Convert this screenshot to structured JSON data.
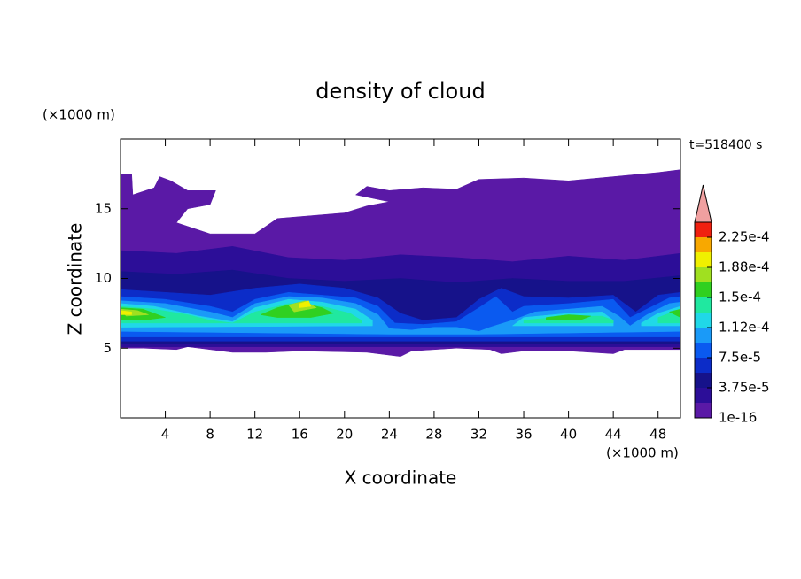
{
  "chart_data": {
    "type": "contour",
    "title": "density of cloud",
    "xlabel": "X coordinate",
    "ylabel": "Z coordinate",
    "x_unit": "(×1000 m)",
    "y_unit": "(×1000 m)",
    "annotation": "t=518400 s",
    "xlim": [
      0,
      50
    ],
    "ylim": [
      0,
      20
    ],
    "xticks": [
      4,
      8,
      12,
      16,
      20,
      24,
      28,
      32,
      36,
      40,
      44,
      48
    ],
    "yticks": [
      5,
      10,
      15
    ],
    "colorbar": {
      "levels": [
        1e-16,
        1.875e-05,
        3.75e-05,
        5.625e-05,
        7.5e-05,
        9.375e-05,
        0.0001125,
        0.00013125,
        0.00015,
        0.00016875,
        0.0001875,
        0.00020625,
        0.000225
      ],
      "colors": [
        "#5a19a6",
        "#2c0e98",
        "#16128a",
        "#0c2cc8",
        "#0a5af0",
        "#1a9af8",
        "#20d8e8",
        "#20e8a0",
        "#30d020",
        "#a0e020",
        "#f0f000",
        "#f8a800",
        "#f02010"
      ],
      "clim": [
        1e-16,
        0.00024375
      ],
      "extend_color": "#f0a0a0",
      "ticks": [
        {
          "value": 1e-16,
          "label": "1e-16"
        },
        {
          "value": 3.75e-05,
          "label": "3.75e-5"
        },
        {
          "value": 7.5e-05,
          "label": "7.5e-5"
        },
        {
          "value": 0.0001125,
          "label": "1.12e-4"
        },
        {
          "value": 0.00015,
          "label": "1.5e-4"
        },
        {
          "value": 0.0001875,
          "label": "1.88e-4"
        },
        {
          "value": 0.000225,
          "label": "2.25e-4"
        }
      ]
    },
    "contours": [
      {
        "level": 1e-16,
        "x": [
          0,
          1,
          1.1,
          3,
          3.5,
          4.5,
          6,
          8.5,
          8,
          6,
          5,
          8,
          12,
          14,
          17,
          20,
          22,
          24,
          21,
          22,
          24,
          27,
          30,
          32,
          36,
          40,
          44,
          48,
          50,
          50,
          45,
          44,
          40,
          36,
          34,
          33,
          30,
          26,
          25,
          22,
          16,
          13,
          10,
          6,
          5,
          2,
          0
        ],
        "z": [
          17.5,
          17.5,
          16,
          16.5,
          17.3,
          17,
          16.3,
          16.3,
          15.3,
          15,
          14,
          13.2,
          13.2,
          14.3,
          14.5,
          14.7,
          15.2,
          15.5,
          16,
          16.6,
          16.3,
          16.5,
          16.4,
          17.1,
          17.2,
          17,
          17.3,
          17.6,
          17.8,
          4.9,
          4.9,
          4.6,
          4.8,
          4.8,
          4.6,
          4.9,
          5,
          4.8,
          4.4,
          4.7,
          4.8,
          4.7,
          4.7,
          5.1,
          4.9,
          5,
          5
        ]
      },
      {
        "level": 1.875e-05,
        "x": [
          0,
          5,
          10,
          15,
          20,
          25,
          30,
          35,
          40,
          45,
          50,
          50,
          0
        ],
        "z": [
          12,
          11.8,
          12.3,
          11.5,
          11.3,
          11.7,
          11.5,
          11.2,
          11.6,
          11.3,
          11.8,
          5.1,
          5.1
        ]
      },
      {
        "level": 3.75e-05,
        "x": [
          0,
          5,
          10,
          15,
          20,
          25,
          30,
          35,
          40,
          45,
          50,
          50,
          0
        ],
        "z": [
          10.5,
          10.3,
          10.6,
          10,
          9.8,
          10,
          9.7,
          10,
          9.8,
          9.8,
          10.2,
          5.3,
          5.3
        ]
      },
      {
        "level": 5.625e-05,
        "x": [
          0,
          4,
          8,
          12,
          16,
          20,
          23,
          25,
          27,
          30,
          32,
          34,
          36,
          40,
          44,
          46,
          48,
          50,
          50,
          0
        ],
        "z": [
          9.2,
          9,
          8.8,
          9.3,
          9.6,
          9.3,
          8.6,
          7.5,
          7,
          7.2,
          8.5,
          9.3,
          8.7,
          8.6,
          8.8,
          7.6,
          8.8,
          9,
          5.5,
          5.5
        ]
      },
      {
        "level": 7.5e-05,
        "x": [
          0,
          4,
          8,
          10,
          12,
          15,
          18,
          21,
          23,
          24.5,
          27,
          30,
          32,
          33.5,
          35,
          36,
          40,
          44,
          45.5,
          47,
          49,
          50,
          50,
          0
        ],
        "z": [
          8.7,
          8.5,
          8,
          7.6,
          8.5,
          9,
          8.8,
          8.6,
          8,
          6.8,
          6.7,
          6.9,
          7.9,
          8.7,
          7.6,
          8,
          8.2,
          8.5,
          7.2,
          7.8,
          8.6,
          8.7,
          5.8,
          5.8
        ]
      },
      {
        "level": 9.375e-05,
        "x": [
          0,
          4,
          8,
          10,
          12,
          15,
          18,
          21,
          23,
          24,
          26,
          28,
          30,
          32,
          33,
          35,
          37,
          40,
          43,
          44.5,
          45.5,
          47,
          49,
          50,
          50,
          32,
          24,
          0
        ],
        "z": [
          8.4,
          8.2,
          7.6,
          7.2,
          8.2,
          8.7,
          8.6,
          8.2,
          7.4,
          6.4,
          6.3,
          6.5,
          6.5,
          6.2,
          6.5,
          7,
          7.6,
          7.8,
          8,
          7.3,
          6.6,
          7.4,
          8.2,
          8.3,
          6.2,
          6,
          6,
          6.2
        ]
      },
      {
        "level": 0.0001125,
        "x": [
          0,
          3,
          7,
          10,
          12,
          15,
          18,
          21,
          22.5,
          22.5,
          0
        ],
        "z": [
          8.2,
          8,
          7.3,
          6.9,
          7.9,
          8.5,
          8.3,
          7.8,
          7,
          6.6,
          6.5
        ]
      },
      {
        "level": 0.0001125,
        "x": [
          35,
          36,
          40,
          43,
          44,
          44,
          35
        ],
        "z": [
          6.6,
          7.2,
          7.5,
          7.6,
          7,
          6.6,
          6.6
        ]
      },
      {
        "level": 0.0001125,
        "x": [
          46.5,
          48,
          50,
          50,
          46.5
        ],
        "z": [
          6.8,
          7.5,
          8,
          6.6,
          6.6
        ]
      },
      {
        "level": 0.00013125,
        "x": [
          0,
          3,
          6,
          8,
          10,
          12,
          15,
          18,
          20.5,
          21.5,
          21.5,
          0
        ],
        "z": [
          8,
          7.8,
          7.4,
          7,
          6.8,
          7.6,
          8.2,
          8,
          7.5,
          7,
          6.8,
          6.8
        ]
      },
      {
        "level": 0.00013125,
        "x": [
          36,
          40,
          43,
          44,
          44,
          36
        ],
        "z": [
          7,
          7.3,
          7.3,
          7,
          6.8,
          6.8
        ]
      },
      {
        "level": 0.00013125,
        "x": [
          48,
          50,
          50,
          48
        ],
        "z": [
          7.2,
          7.8,
          6.8,
          6.8
        ]
      },
      {
        "level": 0.00015,
        "x": [
          0,
          2,
          4,
          2,
          0
        ],
        "z": [
          7.9,
          7.8,
          7.2,
          7,
          7
        ]
      },
      {
        "level": 0.00015,
        "x": [
          12.5,
          14,
          16,
          18,
          19,
          17,
          14
        ],
        "z": [
          7.4,
          7.9,
          8.3,
          7.9,
          7.5,
          7.2,
          7.2
        ]
      },
      {
        "level": 0.00015,
        "x": [
          38,
          40,
          42,
          41,
          38
        ],
        "z": [
          7.2,
          7.4,
          7.3,
          7,
          7
        ]
      },
      {
        "level": 0.00015,
        "x": [
          49,
          50,
          50
        ],
        "z": [
          7.6,
          7.8,
          7.2
        ]
      },
      {
        "level": 0.00016875,
        "x": [
          0,
          1.5,
          2.5,
          0.5
        ],
        "z": [
          7.8,
          7.7,
          7.4,
          7.3
        ]
      },
      {
        "level": 0.00016875,
        "x": [
          15,
          16.5,
          17.5,
          15.5
        ],
        "z": [
          8.1,
          8.4,
          7.9,
          7.6
        ]
      },
      {
        "level": 0.0001875,
        "x": [
          0,
          1,
          1,
          0
        ],
        "z": [
          7.7,
          7.6,
          7.4,
          7.4
        ]
      },
      {
        "level": 0.0001875,
        "x": [
          16,
          16.8,
          17,
          16
        ],
        "z": [
          8.2,
          8.4,
          8,
          7.9
        ]
      }
    ]
  }
}
